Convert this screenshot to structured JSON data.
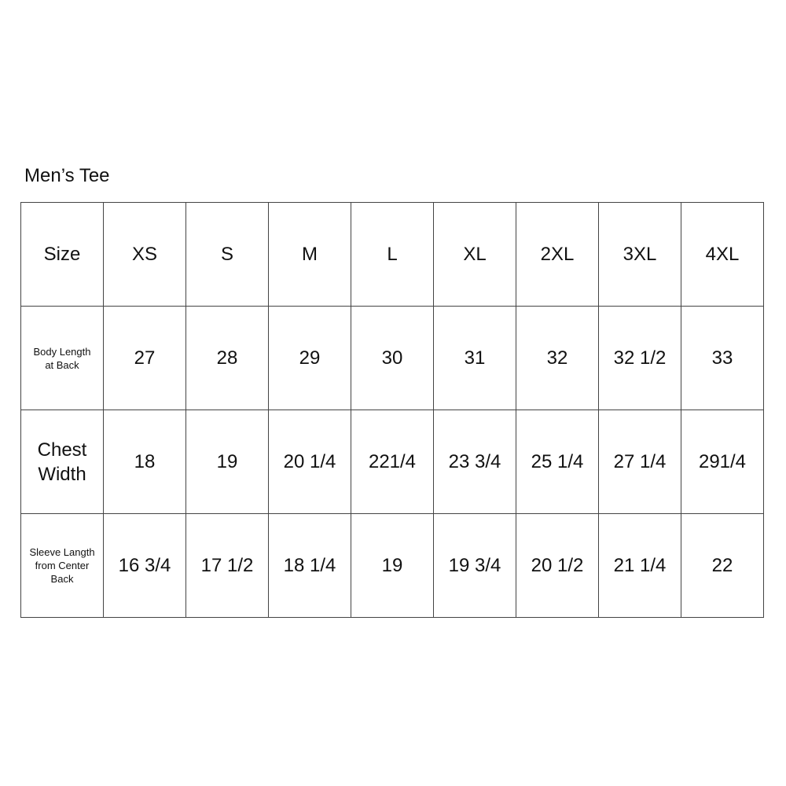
{
  "title": "Men’s Tee",
  "table": {
    "rows": [
      {
        "label": "Size",
        "label_style": "normal",
        "values": [
          "XS",
          "S",
          "M",
          "L",
          "XL",
          "2XL",
          "3XL",
          "4XL"
        ]
      },
      {
        "label": "Body Length\nat Back",
        "label_style": "small",
        "values": [
          "27",
          "28",
          "29",
          "30",
          "31",
          "32",
          "32 1/2",
          "33"
        ]
      },
      {
        "label": "Chest\nWidth",
        "label_style": "big",
        "values": [
          "18",
          "19",
          "20 1/4",
          "221/4",
          "23 3/4",
          "25 1/4",
          "27 1/4",
          "291/4"
        ]
      },
      {
        "label": "Sleeve Langth\nfrom Center\nBack",
        "label_style": "small",
        "values": [
          "16 3/4",
          "17 1/2",
          "18 1/4",
          "19",
          "19 3/4",
          "20 1/2",
          "21 1/4",
          "22"
        ]
      }
    ]
  }
}
